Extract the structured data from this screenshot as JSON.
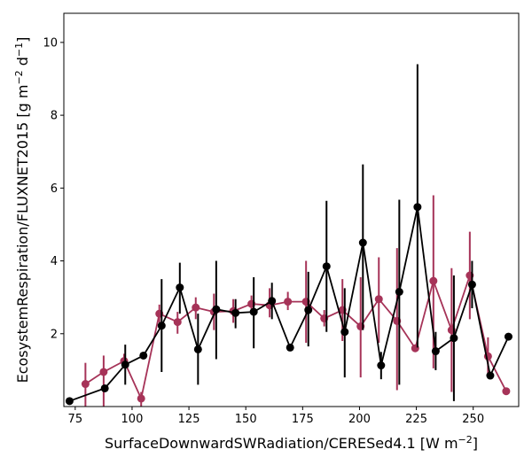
{
  "chart_data": {
    "type": "line",
    "xlabel": "SurfaceDownwardSWRadiation/CERESed4.1 [W m",
    "xlabel_sup": "−2",
    "xlabel_tail": "]",
    "ylabel": "EcosystemRespiration/FLUXNET2015 [g m",
    "ylabel_sup1": "−2",
    "ylabel_mid": " d",
    "ylabel_sup2": "−1",
    "ylabel_tail": "]",
    "xlim": [
      70,
      270
    ],
    "ylim": [
      0,
      10.8
    ],
    "xticks": [
      75,
      100,
      125,
      150,
      175,
      200,
      225,
      250
    ],
    "xtick_labels": [
      "75",
      "100",
      "125",
      "150",
      "175",
      "200",
      "225",
      "250"
    ],
    "yticks": [
      2,
      4,
      6,
      8,
      10
    ],
    "ytick_labels": [
      "2",
      "4",
      "6",
      "8",
      "10"
    ],
    "grid": false,
    "series": [
      {
        "color": "#a63358",
        "x": [
          79.5,
          87.5,
          96.5,
          104,
          112,
          120,
          128,
          136,
          144.5,
          152.5,
          160.5,
          168.5,
          176.5,
          184.5,
          192.5,
          200.5,
          208.5,
          216.5,
          224.5,
          232.5,
          240.5,
          248.5,
          256.5,
          264.5
        ],
        "y": [
          0.62,
          0.95,
          1.25,
          0.22,
          2.55,
          2.32,
          2.72,
          2.6,
          2.62,
          2.82,
          2.78,
          2.88,
          2.88,
          2.42,
          2.65,
          2.2,
          2.95,
          2.35,
          1.6,
          3.45,
          2.1,
          3.6,
          1.38,
          0.42
        ],
        "err_low": [
          0.0,
          0.0,
          1.05,
          0.0,
          2.3,
          2.0,
          2.4,
          2.1,
          2.3,
          2.55,
          2.45,
          2.65,
          1.75,
          2.2,
          1.8,
          0.8,
          1.75,
          0.45,
          1.55,
          1.05,
          0.4,
          2.4,
          0.85,
          0.4
        ],
        "err_high": [
          1.2,
          1.4,
          1.45,
          0.4,
          2.8,
          2.6,
          3.0,
          3.1,
          2.95,
          3.05,
          3.25,
          3.15,
          4.0,
          2.65,
          3.5,
          3.55,
          4.1,
          4.35,
          1.65,
          5.8,
          3.8,
          4.8,
          1.9,
          0.45
        ]
      },
      {
        "color": "#000000",
        "x": [
          72.5,
          88,
          97,
          105,
          113,
          121,
          129,
          137,
          145.5,
          153.5,
          161.5,
          169.5,
          177.5,
          185.5,
          193.5,
          201.5,
          209.5,
          217.5,
          225.5,
          233.5,
          241.5,
          249.5,
          257.5,
          265.5
        ],
        "y": [
          0.15,
          0.5,
          1.15,
          1.4,
          2.22,
          3.27,
          1.57,
          2.67,
          2.57,
          2.6,
          2.9,
          1.62,
          2.65,
          3.85,
          2.05,
          4.5,
          1.13,
          3.15,
          5.48,
          1.52,
          1.88,
          3.35,
          0.85,
          1.92
        ],
        "err_low": [
          0.15,
          0.5,
          0.6,
          1.4,
          0.95,
          2.55,
          0.6,
          1.3,
          2.15,
          1.6,
          2.4,
          1.62,
          1.65,
          2.05,
          0.8,
          2.1,
          0.75,
          0.6,
          1.62,
          1.0,
          0.15,
          2.7,
          0.75,
          1.92
        ],
        "err_high": [
          0.15,
          0.5,
          1.7,
          1.4,
          3.5,
          3.95,
          2.55,
          4.0,
          2.95,
          3.55,
          3.4,
          1.62,
          3.7,
          5.65,
          3.25,
          6.65,
          1.5,
          5.68,
          9.4,
          2.05,
          3.6,
          4.0,
          0.95,
          1.92
        ]
      }
    ]
  }
}
